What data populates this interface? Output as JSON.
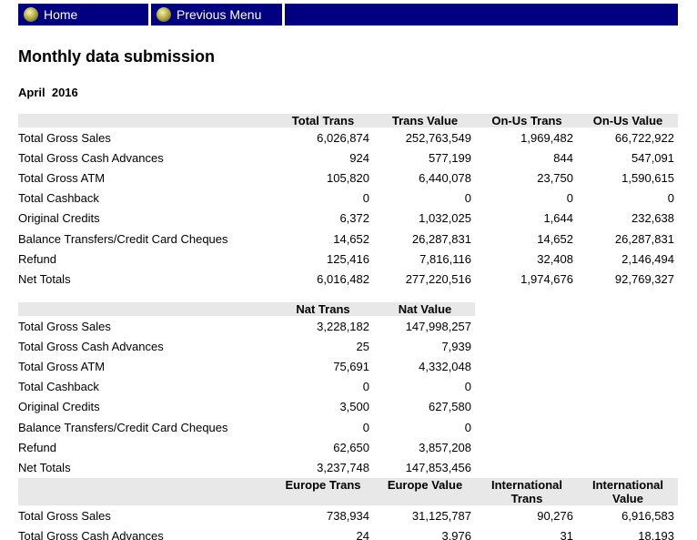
{
  "nav": [
    "Home",
    "Previous Menu"
  ],
  "title": "Monthly data submission",
  "period": "April  2016",
  "tables": [
    {
      "headers": [
        "Total Trans",
        "Trans Value",
        "On-Us Trans",
        "On-Us Value"
      ],
      "rows": [
        [
          "Total Gross Sales",
          "6,026,874",
          "252,763,549",
          "1,969,482",
          "66,722,922"
        ],
        [
          "Total Gross Cash Advances",
          "924",
          "577,199",
          "844",
          "547,091"
        ],
        [
          "Total Gross ATM",
          "105,820",
          "6,440,078",
          "23,750",
          "1,590,615"
        ],
        [
          "Total Cashback",
          "0",
          "0",
          "0",
          "0"
        ],
        [
          "Original Credits",
          "6,372",
          "1,032,025",
          "1,644",
          "232,638"
        ],
        [
          "Balance Transfers/Credit Card Cheques",
          "14,652",
          "26,287,831",
          "14,652",
          "26,287,831"
        ],
        [
          "Refund",
          "125,416",
          "7,816,116",
          "32,408",
          "2,146,494"
        ],
        [
          "Net Totals",
          "6,016,482",
          "277,220,516",
          "1,974,676",
          "92,769,327"
        ]
      ]
    },
    {
      "headers": [
        "Nat Trans",
        "Nat Value"
      ],
      "rows": [
        [
          "Total Gross Sales",
          "3,228,182",
          "147,998,257"
        ],
        [
          "Total Gross Cash Advances",
          "25",
          "7,939"
        ],
        [
          "Total Gross ATM",
          "75,691",
          "4,332,048"
        ],
        [
          "Total Cashback",
          "0",
          "0"
        ],
        [
          "Original Credits",
          "3,500",
          "627,580"
        ],
        [
          "Balance Transfers/Credit Card Cheques",
          "0",
          "0"
        ],
        [
          "Refund",
          "62,650",
          "3,857,208"
        ],
        [
          "Net Totals",
          "3,237,748",
          "147,853,456"
        ]
      ]
    },
    {
      "headers": [
        "Europe Trans",
        "Europe Value",
        "International Trans",
        "International Value"
      ],
      "rows": [
        [
          "Total Gross Sales",
          "738,934",
          "31,125,787",
          "90,276",
          "6,916,583"
        ],
        [
          "Total Gross Cash Advances",
          "24",
          "3,976",
          "31",
          "18,193"
        ]
      ]
    }
  ]
}
